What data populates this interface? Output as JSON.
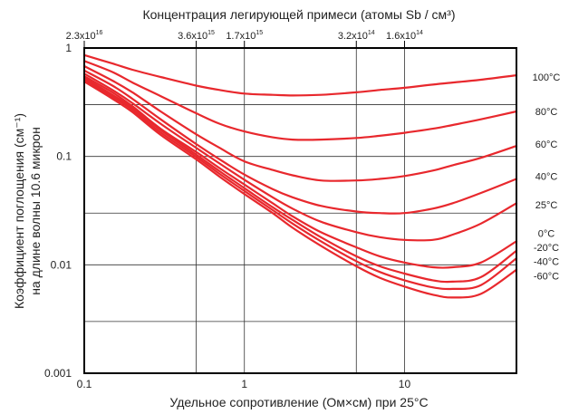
{
  "chart_data": {
    "type": "line",
    "title": "Концентрация легирующей примеси (атомы Sb / см³)",
    "xlabel": "Удельное сопротивление (Ом×см) при 25°C",
    "ylabel_line1": "Коэффициент поглощения (см⁻¹)",
    "ylabel_line2": "на длине волны 10.6 микрон",
    "x_scale": "log",
    "y_scale": "log",
    "xlim": [
      0.1,
      50
    ],
    "ylim": [
      0.001,
      1
    ],
    "grid": true,
    "x_ticks": [
      {
        "value": 0.1,
        "label": "0.1"
      },
      {
        "value": 1,
        "label": "1"
      },
      {
        "value": 10,
        "label": "10"
      }
    ],
    "y_ticks": [
      {
        "value": 0.001,
        "label": "0.001"
      },
      {
        "value": 0.01,
        "label": "0.01"
      },
      {
        "value": 0.1,
        "label": "0.1"
      },
      {
        "value": 1,
        "label": "1"
      }
    ],
    "top_axis_ticks": [
      {
        "x": 0.1,
        "label": "2.3x10",
        "exp": "16"
      },
      {
        "x": 0.5,
        "label": "3.6x10",
        "exp": "15"
      },
      {
        "x": 1,
        "label": "1.7x10",
        "exp": "15"
      },
      {
        "x": 5,
        "label": "3.2x10",
        "exp": "14"
      },
      {
        "x": 10,
        "label": "1.6x10",
        "exp": "14"
      }
    ],
    "series_color": "#e8282d",
    "series": [
      {
        "name": "100°C",
        "label_y": 0.54,
        "points": [
          [
            0.1,
            0.86
          ],
          [
            0.15,
            0.72
          ],
          [
            0.2,
            0.63
          ],
          [
            0.3,
            0.54
          ],
          [
            0.5,
            0.45
          ],
          [
            0.7,
            0.41
          ],
          [
            1,
            0.38
          ],
          [
            1.5,
            0.37
          ],
          [
            2,
            0.365
          ],
          [
            3,
            0.37
          ],
          [
            5,
            0.39
          ],
          [
            7,
            0.41
          ],
          [
            10,
            0.43
          ],
          [
            15,
            0.46
          ],
          [
            20,
            0.48
          ],
          [
            30,
            0.51
          ],
          [
            50,
            0.56
          ]
        ]
      },
      {
        "name": "80°C",
        "label_y": 0.26,
        "points": [
          [
            0.1,
            0.76
          ],
          [
            0.15,
            0.6
          ],
          [
            0.2,
            0.48
          ],
          [
            0.3,
            0.36
          ],
          [
            0.5,
            0.25
          ],
          [
            0.7,
            0.2
          ],
          [
            1,
            0.17
          ],
          [
            1.5,
            0.15
          ],
          [
            2,
            0.143
          ],
          [
            3,
            0.143
          ],
          [
            5,
            0.148
          ],
          [
            7,
            0.155
          ],
          [
            10,
            0.165
          ],
          [
            15,
            0.18
          ],
          [
            20,
            0.195
          ],
          [
            30,
            0.22
          ],
          [
            50,
            0.26
          ]
        ]
      },
      {
        "name": "60°C",
        "label_y": 0.13,
        "points": [
          [
            0.1,
            0.68
          ],
          [
            0.15,
            0.5
          ],
          [
            0.2,
            0.39
          ],
          [
            0.3,
            0.26
          ],
          [
            0.5,
            0.16
          ],
          [
            0.7,
            0.12
          ],
          [
            1,
            0.09
          ],
          [
            1.5,
            0.075
          ],
          [
            2,
            0.067
          ],
          [
            3,
            0.06
          ],
          [
            5,
            0.06
          ],
          [
            7,
            0.062
          ],
          [
            10,
            0.066
          ],
          [
            15,
            0.074
          ],
          [
            20,
            0.083
          ],
          [
            30,
            0.097
          ],
          [
            50,
            0.125
          ]
        ]
      },
      {
        "name": "40°C",
        "label_y": 0.066,
        "points": [
          [
            0.1,
            0.62
          ],
          [
            0.15,
            0.45
          ],
          [
            0.2,
            0.34
          ],
          [
            0.3,
            0.22
          ],
          [
            0.5,
            0.13
          ],
          [
            0.7,
            0.094
          ],
          [
            1,
            0.068
          ],
          [
            1.5,
            0.05
          ],
          [
            2,
            0.042
          ],
          [
            3,
            0.035
          ],
          [
            5,
            0.031
          ],
          [
            7,
            0.03
          ],
          [
            10,
            0.03
          ],
          [
            15,
            0.033
          ],
          [
            20,
            0.037
          ],
          [
            30,
            0.046
          ],
          [
            50,
            0.062
          ]
        ]
      },
      {
        "name": "25°C",
        "label_y": 0.036,
        "points": [
          [
            0.1,
            0.58
          ],
          [
            0.15,
            0.41
          ],
          [
            0.2,
            0.31
          ],
          [
            0.3,
            0.2
          ],
          [
            0.5,
            0.12
          ],
          [
            0.7,
            0.086
          ],
          [
            1,
            0.061
          ],
          [
            1.5,
            0.042
          ],
          [
            2,
            0.033
          ],
          [
            3,
            0.025
          ],
          [
            5,
            0.02
          ],
          [
            7,
            0.018
          ],
          [
            10,
            0.017
          ],
          [
            15,
            0.017
          ],
          [
            20,
            0.019
          ],
          [
            30,
            0.024
          ],
          [
            50,
            0.037
          ]
        ]
      },
      {
        "name": "0°C",
        "label_y": 0.0195,
        "points": [
          [
            0.1,
            0.55
          ],
          [
            0.15,
            0.39
          ],
          [
            0.2,
            0.29
          ],
          [
            0.3,
            0.18
          ],
          [
            0.5,
            0.11
          ],
          [
            0.7,
            0.078
          ],
          [
            1,
            0.055
          ],
          [
            1.5,
            0.037
          ],
          [
            2,
            0.028
          ],
          [
            3,
            0.02
          ],
          [
            5,
            0.0145
          ],
          [
            7,
            0.012
          ],
          [
            10,
            0.0105
          ],
          [
            15,
            0.0095
          ],
          [
            20,
            0.0095
          ],
          [
            30,
            0.0105
          ],
          [
            50,
            0.0165
          ]
        ]
      },
      {
        "name": "-20°C",
        "label_y": 0.0145,
        "points": [
          [
            0.1,
            0.53
          ],
          [
            0.15,
            0.37
          ],
          [
            0.2,
            0.28
          ],
          [
            0.3,
            0.175
          ],
          [
            0.5,
            0.104
          ],
          [
            0.7,
            0.073
          ],
          [
            1,
            0.051
          ],
          [
            1.5,
            0.034
          ],
          [
            2,
            0.026
          ],
          [
            3,
            0.018
          ],
          [
            5,
            0.012
          ],
          [
            7,
            0.0097
          ],
          [
            10,
            0.0083
          ],
          [
            15,
            0.0072
          ],
          [
            20,
            0.007
          ],
          [
            30,
            0.0077
          ],
          [
            50,
            0.0135
          ]
        ]
      },
      {
        "name": "-40°C",
        "label_y": 0.0108,
        "points": [
          [
            0.1,
            0.51
          ],
          [
            0.15,
            0.355
          ],
          [
            0.2,
            0.268
          ],
          [
            0.3,
            0.166
          ],
          [
            0.5,
            0.099
          ],
          [
            0.7,
            0.069
          ],
          [
            1,
            0.048
          ],
          [
            1.5,
            0.032
          ],
          [
            2,
            0.024
          ],
          [
            3,
            0.0165
          ],
          [
            5,
            0.0108
          ],
          [
            7,
            0.0086
          ],
          [
            10,
            0.0072
          ],
          [
            15,
            0.0062
          ],
          [
            20,
            0.006
          ],
          [
            30,
            0.0065
          ],
          [
            50,
            0.0115
          ]
        ]
      },
      {
        "name": "-60°C",
        "label_y": 0.0079,
        "points": [
          [
            0.1,
            0.49
          ],
          [
            0.15,
            0.34
          ],
          [
            0.2,
            0.256
          ],
          [
            0.3,
            0.158
          ],
          [
            0.5,
            0.094
          ],
          [
            0.7,
            0.065
          ],
          [
            1,
            0.045
          ],
          [
            1.5,
            0.03
          ],
          [
            2,
            0.022
          ],
          [
            3,
            0.015
          ],
          [
            5,
            0.0097
          ],
          [
            7,
            0.0076
          ],
          [
            10,
            0.0063
          ],
          [
            15,
            0.0053
          ],
          [
            20,
            0.005
          ],
          [
            30,
            0.0054
          ],
          [
            50,
            0.009
          ]
        ]
      }
    ]
  }
}
